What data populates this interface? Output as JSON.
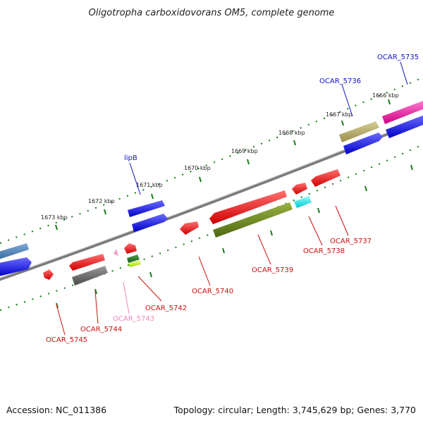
{
  "title": "Oligotropha carboxidovorans OM5, complete genome",
  "accession": "Accession: NC_011386",
  "summary": "Topology: circular; Length: 3,745,629 bp; Genes: 3,770",
  "scale_ticks": [
    "1673 kbp",
    "1672 kbp",
    "1671 kbp",
    "1670 kbp",
    "1669 kbp",
    "1668 kbp",
    "1667 kbp",
    "1666 kbp"
  ],
  "genes_forward": [
    "lipB",
    "OCAR_5736",
    "OCAR_5735"
  ],
  "genes_reverse": [
    "OCAR_5745",
    "OCAR_5744",
    "OCAR_5743",
    "OCAR_5742",
    "OCAR_5740",
    "OCAR_5739",
    "OCAR_5738",
    "OCAR_5737"
  ],
  "colors": {
    "forward_label": "#1010cc",
    "reverse_label": "#cc1010",
    "pseudo_label": "#ee88bb",
    "backbone": "#808080",
    "tick": "#1a7a1a"
  }
}
